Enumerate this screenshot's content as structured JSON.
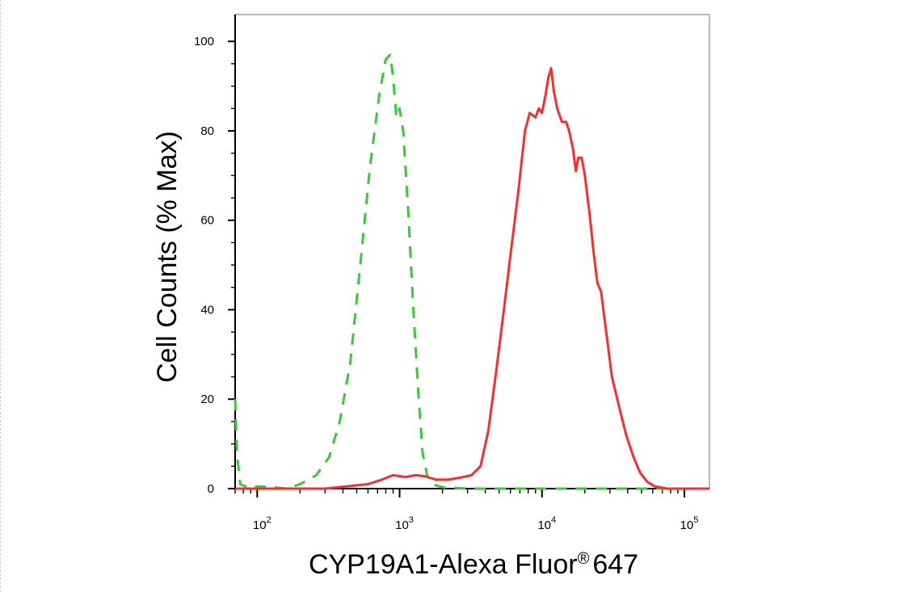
{
  "chart_data": {
    "type": "line",
    "title": "",
    "xlabel": "CYP19A1-Alexa Fluor",
    "xlabel_superscript": "®",
    "xlabel_suffix": "647",
    "ylabel": "Cell Counts (% Max)",
    "xscale": "log",
    "xlim": [
      70,
      150000
    ],
    "ylim": [
      0,
      106
    ],
    "y_ticks": [
      0,
      20,
      40,
      60,
      80,
      100
    ],
    "y_tick_labels": [
      "0",
      "20",
      "40",
      "60",
      "80",
      "100"
    ],
    "x_major_ticks": [
      100,
      1000,
      10000,
      100000
    ],
    "x_tick_base": [
      "10",
      "10",
      "10",
      "10"
    ],
    "x_tick_exp": [
      "2",
      "3",
      "4",
      "5"
    ],
    "grid": false,
    "legend": "none",
    "series": [
      {
        "color": "#33cc33",
        "style": "dashed",
        "points": [
          [
            70,
            20
          ],
          [
            72,
            8
          ],
          [
            76,
            1
          ],
          [
            90,
            0
          ],
          [
            100,
            0.5
          ],
          [
            130,
            0.3
          ],
          [
            160,
            0
          ],
          [
            200,
            1
          ],
          [
            260,
            3
          ],
          [
            320,
            7
          ],
          [
            380,
            15
          ],
          [
            450,
            28
          ],
          [
            530,
            50
          ],
          [
            620,
            72
          ],
          [
            720,
            88
          ],
          [
            800,
            96
          ],
          [
            860,
            97
          ],
          [
            900,
            92
          ],
          [
            950,
            83
          ],
          [
            1000,
            85
          ],
          [
            1060,
            80
          ],
          [
            1150,
            62
          ],
          [
            1250,
            40
          ],
          [
            1350,
            22
          ],
          [
            1450,
            8
          ],
          [
            1560,
            3
          ],
          [
            1700,
            1
          ],
          [
            2000,
            0.3
          ],
          [
            3000,
            0
          ],
          [
            10000,
            0
          ],
          [
            100000,
            0
          ],
          [
            150000,
            0
          ]
        ]
      },
      {
        "color": "#ff2a2a",
        "style": "solid",
        "points": [
          [
            70,
            0
          ],
          [
            300,
            0
          ],
          [
            450,
            0.6
          ],
          [
            600,
            1
          ],
          [
            750,
            2
          ],
          [
            900,
            3
          ],
          [
            1100,
            2.6
          ],
          [
            1300,
            3
          ],
          [
            1500,
            2.8
          ],
          [
            1800,
            2
          ],
          [
            2200,
            2
          ],
          [
            2700,
            2.5
          ],
          [
            3200,
            3
          ],
          [
            3700,
            5
          ],
          [
            4200,
            13
          ],
          [
            4800,
            27
          ],
          [
            5400,
            40
          ],
          [
            6000,
            52
          ],
          [
            6800,
            66
          ],
          [
            7600,
            80
          ],
          [
            8200,
            84
          ],
          [
            9000,
            83
          ],
          [
            9500,
            85
          ],
          [
            10000,
            84
          ],
          [
            10600,
            88
          ],
          [
            11100,
            92
          ],
          [
            11600,
            94
          ],
          [
            12100,
            89
          ],
          [
            12800,
            85
          ],
          [
            13800,
            82
          ],
          [
            14800,
            82
          ],
          [
            15500,
            80
          ],
          [
            16500,
            76
          ],
          [
            17300,
            71
          ],
          [
            18000,
            74
          ],
          [
            19000,
            74
          ],
          [
            20000,
            70
          ],
          [
            21500,
            62
          ],
          [
            23000,
            53
          ],
          [
            24500,
            46
          ],
          [
            26000,
            44
          ],
          [
            28000,
            36
          ],
          [
            31000,
            25
          ],
          [
            35000,
            18
          ],
          [
            39000,
            12
          ],
          [
            44000,
            7
          ],
          [
            49000,
            3.5
          ],
          [
            55000,
            1.5
          ],
          [
            62000,
            0.5
          ],
          [
            75000,
            0
          ],
          [
            150000,
            0
          ]
        ]
      }
    ]
  }
}
